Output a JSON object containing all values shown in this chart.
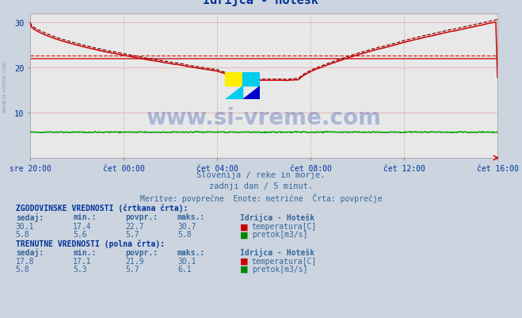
{
  "title": "Idrijca - Hotešk",
  "bg_color": "#ccd4e0",
  "plot_bg_color": "#e8e8e8",
  "x_labels": [
    "sre 20:00",
    "čet 00:00",
    "čet 04:00",
    "čet 08:00",
    "čet 12:00",
    "čet 16:00"
  ],
  "x_ticks_pos": [
    0,
    48,
    96,
    144,
    192,
    240
  ],
  "total_points": 289,
  "y_min": 0,
  "y_max": 32,
  "y_ticks": [
    10,
    20,
    30
  ],
  "subtitle_lines": [
    "Slovenija / reke in morje.",
    "zadnji dan / 5 minut.",
    "Meritve: povprečne  Enote: metrične  Črta: povprečje"
  ],
  "hist_label": "ZGODOVINSKE VREDNOSTI (črtkana črta):",
  "curr_label": "TRENUTNE VREDNOSTI (polna črta):",
  "table_headers": [
    "sedaj:",
    "min.:",
    "povpr.:",
    "maks.:",
    "Idrijca - Hotešk"
  ],
  "hist_temp": {
    "sedaj": 30.1,
    "min": 17.4,
    "povpr": 22.7,
    "maks": 30.7,
    "label": "temperatura[C]",
    "color": "#cc0000"
  },
  "hist_flow": {
    "sedaj": 5.8,
    "min": 5.6,
    "povpr": 5.7,
    "maks": 5.8,
    "label": "pretok[m3/s]",
    "color": "#008800"
  },
  "curr_temp": {
    "sedaj": 17.8,
    "min": 17.1,
    "povpr": 21.9,
    "maks": 30.1,
    "label": "temperatura[C]",
    "color": "#cc0000"
  },
  "curr_flow": {
    "sedaj": 5.8,
    "min": 5.3,
    "povpr": 5.7,
    "maks": 6.1,
    "label": "pretok[m3/s]",
    "color": "#008800"
  },
  "avg_temp_hist": 22.7,
  "avg_temp_curr": 21.9,
  "temp_color": "#cc0000",
  "flow_color": "#008800",
  "watermark_text": "www.si-vreme.com",
  "left_watermark": "www.si-vreme.com"
}
